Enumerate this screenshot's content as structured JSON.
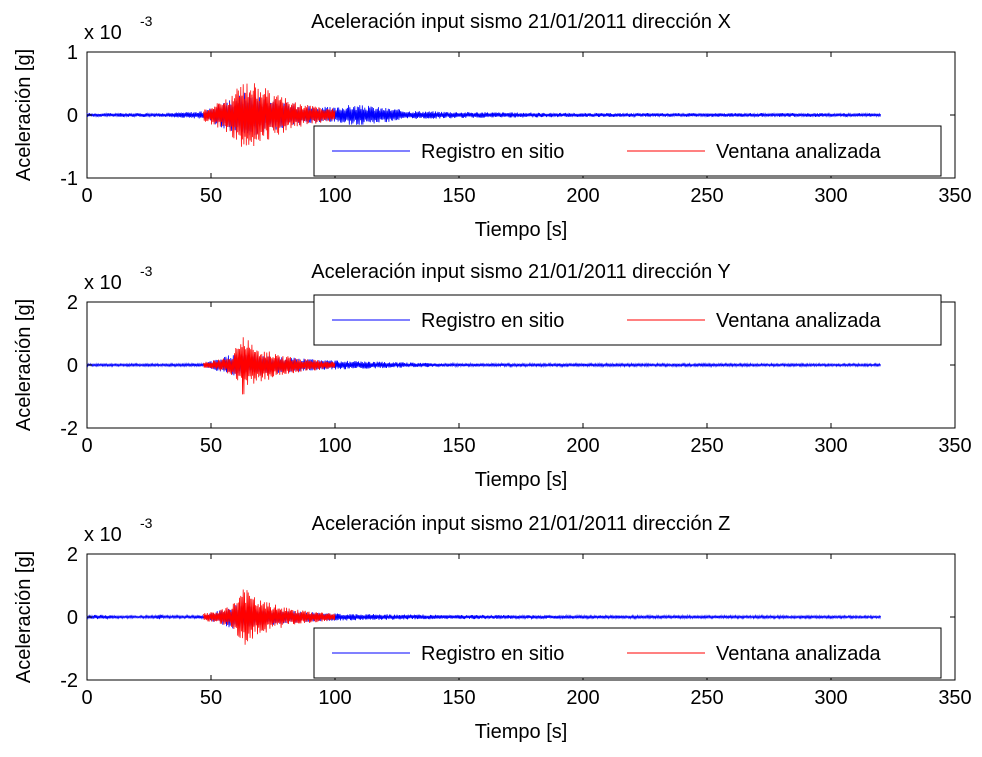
{
  "figure": {
    "background": "#ffffff",
    "series_colors": {
      "registro": "#0000ff",
      "ventana": "#ff0000"
    }
  },
  "chart_data": [
    {
      "type": "line",
      "title": "Aceleración input sismo 21/01/2011 dirección X",
      "xlabel": "Tiempo [s]",
      "ylabel": "Aceleración [g]",
      "exponent_label": "x 10",
      "exponent_power": "-3",
      "xlim": [
        0,
        350
      ],
      "ylim": [
        -1,
        1
      ],
      "xticks": [
        "0",
        "50",
        "100",
        "150",
        "200",
        "250",
        "300",
        "350"
      ],
      "yticks": [
        "-1",
        "0",
        "1"
      ],
      "grid": false,
      "legend": {
        "position": "bottom-right",
        "entries": [
          "Registro en sitio",
          "Ventana analizada"
        ]
      },
      "series": [
        {
          "name": "Registro en sitio",
          "color": "#0000ff",
          "t_start": 0,
          "t_end": 320,
          "envelope": [
            [
              0,
              0.03
            ],
            [
              30,
              0.03
            ],
            [
              47,
              0.06
            ],
            [
              50,
              0.12
            ],
            [
              60,
              0.3
            ],
            [
              65,
              0.4
            ],
            [
              70,
              0.3
            ],
            [
              80,
              0.2
            ],
            [
              90,
              0.15
            ],
            [
              100,
              0.12
            ],
            [
              105,
              0.16
            ],
            [
              110,
              0.16
            ],
            [
              120,
              0.12
            ],
            [
              130,
              0.07
            ],
            [
              150,
              0.05
            ],
            [
              200,
              0.03
            ],
            [
              320,
              0.03
            ]
          ]
        },
        {
          "name": "Ventana analizada",
          "color": "#ff0000",
          "t_start": 47,
          "t_end": 100,
          "envelope": [
            [
              47,
              0.1
            ],
            [
              50,
              0.15
            ],
            [
              55,
              0.25
            ],
            [
              60,
              0.4
            ],
            [
              62,
              0.5
            ],
            [
              64,
              0.55
            ],
            [
              66,
              0.6
            ],
            [
              68,
              0.5
            ],
            [
              70,
              0.42
            ],
            [
              72,
              0.45
            ],
            [
              75,
              0.35
            ],
            [
              80,
              0.28
            ],
            [
              85,
              0.2
            ],
            [
              90,
              0.15
            ],
            [
              95,
              0.12
            ],
            [
              100,
              0.1
            ]
          ]
        }
      ]
    },
    {
      "type": "line",
      "title": "Aceleración input sismo 21/01/2011 dirección Y",
      "xlabel": "Tiempo [s]",
      "ylabel": "Aceleración [g]",
      "exponent_label": "x 10",
      "exponent_power": "-3",
      "xlim": [
        0,
        350
      ],
      "ylim": [
        -2,
        2
      ],
      "xticks": [
        "0",
        "50",
        "100",
        "150",
        "200",
        "250",
        "300",
        "350"
      ],
      "yticks": [
        "-2",
        "0",
        "2"
      ],
      "grid": false,
      "legend": {
        "position": "top-right",
        "entries": [
          "Registro en sitio",
          "Ventana analizada"
        ]
      },
      "series": [
        {
          "name": "Registro en sitio",
          "color": "#0000ff",
          "t_start": 0,
          "t_end": 320,
          "envelope": [
            [
              0,
              0.04
            ],
            [
              30,
              0.04
            ],
            [
              47,
              0.05
            ],
            [
              60,
              0.4
            ],
            [
              80,
              0.25
            ],
            [
              100,
              0.15
            ],
            [
              110,
              0.12
            ],
            [
              130,
              0.08
            ],
            [
              150,
              0.05
            ],
            [
              320,
              0.04
            ]
          ]
        },
        {
          "name": "Ventana analizada",
          "color": "#ff0000",
          "t_start": 47,
          "t_end": 100,
          "envelope": [
            [
              47,
              0.1
            ],
            [
              52,
              0.15
            ],
            [
              58,
              0.3
            ],
            [
              62,
              0.8
            ],
            [
              63,
              1.0
            ],
            [
              65,
              0.8
            ],
            [
              68,
              0.55
            ],
            [
              72,
              0.5
            ],
            [
              76,
              0.4
            ],
            [
              80,
              0.3
            ],
            [
              88,
              0.2
            ],
            [
              95,
              0.15
            ],
            [
              100,
              0.1
            ]
          ]
        }
      ]
    },
    {
      "type": "line",
      "title": "Aceleración input sismo 21/01/2011 dirección Z",
      "xlabel": "Tiempo [s]",
      "ylabel": "Aceleración [g]",
      "exponent_label": "x 10",
      "exponent_power": "-3",
      "xlim": [
        0,
        350
      ],
      "ylim": [
        -2,
        2
      ],
      "xticks": [
        "0",
        "50",
        "100",
        "150",
        "200",
        "250",
        "300",
        "350"
      ],
      "yticks": [
        "-2",
        "0",
        "2"
      ],
      "grid": false,
      "legend": {
        "position": "bottom-right",
        "entries": [
          "Registro en sitio",
          "Ventana analizada"
        ]
      },
      "series": [
        {
          "name": "Registro en sitio",
          "color": "#0000ff",
          "t_start": 0,
          "t_end": 320,
          "envelope": [
            [
              0,
              0.04
            ],
            [
              5,
              0.08
            ],
            [
              12,
              0.04
            ],
            [
              27,
              0.04
            ],
            [
              29,
              0.1
            ],
            [
              31,
              0.04
            ],
            [
              47,
              0.05
            ],
            [
              60,
              0.4
            ],
            [
              80,
              0.2
            ],
            [
              100,
              0.12
            ],
            [
              110,
              0.1
            ],
            [
              130,
              0.08
            ],
            [
              150,
              0.07
            ],
            [
              200,
              0.05
            ],
            [
              320,
              0.04
            ]
          ]
        },
        {
          "name": "Ventana analizada",
          "color": "#ff0000",
          "t_start": 47,
          "t_end": 100,
          "envelope": [
            [
              47,
              0.12
            ],
            [
              52,
              0.18
            ],
            [
              58,
              0.35
            ],
            [
              61,
              0.7
            ],
            [
              63,
              1.05
            ],
            [
              65,
              0.85
            ],
            [
              68,
              0.6
            ],
            [
              72,
              0.5
            ],
            [
              76,
              0.4
            ],
            [
              80,
              0.3
            ],
            [
              88,
              0.2
            ],
            [
              95,
              0.15
            ],
            [
              100,
              0.1
            ]
          ]
        }
      ]
    }
  ]
}
